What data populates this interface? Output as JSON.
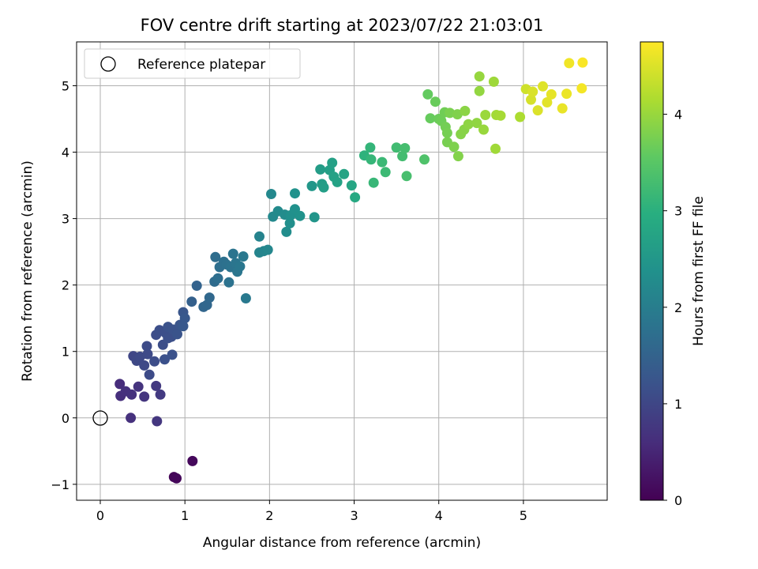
{
  "chart_data": {
    "type": "scatter",
    "title": "FOV centre drift starting at 2023/07/22 21:03:01",
    "xlabel": "Angular distance from reference (arcmin)",
    "ylabel": "Rotation from reference (arcmin)",
    "xlim": [
      -0.28,
      5.99
    ],
    "ylim": [
      -1.24,
      5.66
    ],
    "xticks": [
      0,
      1,
      2,
      3,
      4,
      5
    ],
    "yticks": [
      -1,
      0,
      1,
      2,
      3,
      4,
      5
    ],
    "grid": true,
    "legend": {
      "position": "top-left",
      "entries": [
        "Reference platepar"
      ]
    },
    "reference_point": {
      "x": 0,
      "y": 0,
      "label": "Reference platepar"
    },
    "colorbar": {
      "label": "Hours from first FF file",
      "colormap": "viridis",
      "range": [
        0,
        4.75
      ],
      "ticks": [
        0,
        1,
        2,
        3,
        4
      ]
    },
    "points": [
      [
        0.87,
        -0.89,
        0.05
      ],
      [
        0.9,
        -0.91,
        0.07
      ],
      [
        1.09,
        -0.65,
        0.1
      ],
      [
        0.23,
        0.51,
        0.6
      ],
      [
        0.24,
        0.33,
        0.62
      ],
      [
        0.3,
        0.4,
        0.65
      ],
      [
        0.37,
        0.35,
        0.68
      ],
      [
        0.45,
        0.47,
        0.7
      ],
      [
        0.52,
        0.32,
        0.72
      ],
      [
        0.36,
        0.0,
        0.66
      ],
      [
        0.67,
        -0.05,
        0.75
      ],
      [
        0.66,
        0.48,
        0.78
      ],
      [
        0.71,
        0.35,
        0.8
      ],
      [
        0.39,
        0.93,
        1.0
      ],
      [
        0.43,
        0.86,
        1.02
      ],
      [
        0.47,
        0.92,
        1.04
      ],
      [
        0.52,
        0.79,
        1.05
      ],
      [
        0.56,
        0.96,
        1.06
      ],
      [
        0.55,
        1.08,
        1.07
      ],
      [
        0.58,
        0.65,
        1.08
      ],
      [
        0.64,
        0.85,
        1.1
      ],
      [
        0.66,
        1.25,
        1.11
      ],
      [
        0.7,
        1.32,
        1.12
      ],
      [
        0.74,
        1.1,
        1.13
      ],
      [
        0.77,
        1.28,
        1.14
      ],
      [
        0.8,
        1.2,
        1.15
      ],
      [
        0.84,
        1.22,
        1.16
      ],
      [
        0.76,
        0.88,
        1.17
      ],
      [
        0.85,
        0.95,
        1.18
      ],
      [
        0.8,
        1.37,
        1.19
      ],
      [
        0.86,
        1.33,
        1.2
      ],
      [
        0.91,
        1.26,
        1.22
      ],
      [
        0.94,
        1.4,
        1.24
      ],
      [
        0.98,
        1.59,
        1.27
      ],
      [
        1.0,
        1.5,
        1.29
      ],
      [
        0.98,
        1.38,
        1.3
      ],
      [
        1.08,
        1.75,
        1.45
      ],
      [
        1.14,
        1.99,
        1.5
      ],
      [
        1.22,
        1.67,
        1.55
      ],
      [
        1.26,
        1.7,
        1.58
      ],
      [
        1.29,
        1.81,
        1.6
      ],
      [
        1.35,
        2.05,
        1.65
      ],
      [
        1.36,
        2.42,
        1.68
      ],
      [
        1.39,
        2.1,
        1.7
      ],
      [
        1.41,
        2.27,
        1.72
      ],
      [
        1.46,
        2.35,
        1.74
      ],
      [
        1.49,
        2.31,
        1.76
      ],
      [
        1.52,
        2.04,
        1.78
      ],
      [
        1.54,
        2.27,
        1.8
      ],
      [
        1.57,
        2.47,
        1.82
      ],
      [
        1.6,
        2.33,
        1.84
      ],
      [
        1.62,
        2.2,
        1.86
      ],
      [
        1.65,
        2.28,
        1.88
      ],
      [
        1.69,
        2.43,
        1.9
      ],
      [
        1.72,
        1.8,
        1.92
      ],
      [
        1.88,
        2.73,
        2.1
      ],
      [
        1.88,
        2.49,
        2.12
      ],
      [
        1.93,
        2.51,
        2.15
      ],
      [
        1.98,
        2.53,
        2.18
      ],
      [
        2.02,
        3.37,
        2.2
      ],
      [
        2.04,
        3.03,
        2.22
      ],
      [
        2.1,
        3.11,
        2.25
      ],
      [
        2.18,
        3.06,
        2.28
      ],
      [
        2.2,
        2.8,
        2.3
      ],
      [
        2.24,
        2.93,
        2.33
      ],
      [
        2.25,
        3.05,
        2.35
      ],
      [
        2.3,
        3.14,
        2.37
      ],
      [
        2.3,
        3.38,
        2.39
      ],
      [
        2.36,
        3.04,
        2.4
      ],
      [
        2.53,
        3.02,
        2.45
      ],
      [
        2.5,
        3.49,
        2.5
      ],
      [
        2.6,
        3.74,
        2.6
      ],
      [
        2.62,
        3.52,
        2.62
      ],
      [
        2.64,
        3.47,
        2.64
      ],
      [
        2.71,
        3.73,
        2.66
      ],
      [
        2.74,
        3.84,
        2.68
      ],
      [
        2.76,
        3.63,
        2.7
      ],
      [
        2.8,
        3.55,
        2.72
      ],
      [
        2.88,
        3.67,
        2.75
      ],
      [
        2.97,
        3.5,
        2.78
      ],
      [
        3.01,
        3.32,
        2.85
      ],
      [
        3.12,
        3.95,
        3.05
      ],
      [
        3.19,
        4.07,
        3.1
      ],
      [
        3.2,
        3.89,
        3.12
      ],
      [
        3.23,
        3.54,
        3.15
      ],
      [
        3.33,
        3.85,
        3.18
      ],
      [
        3.37,
        3.7,
        3.2
      ],
      [
        3.5,
        4.07,
        3.25
      ],
      [
        3.57,
        3.94,
        3.28
      ],
      [
        3.6,
        4.06,
        3.3
      ],
      [
        3.62,
        3.64,
        3.32
      ],
      [
        3.83,
        3.89,
        3.4
      ],
      [
        3.87,
        4.87,
        3.6
      ],
      [
        3.9,
        4.51,
        3.62
      ],
      [
        3.96,
        4.76,
        3.64
      ],
      [
        4.0,
        4.5,
        3.66
      ],
      [
        4.03,
        4.47,
        3.68
      ],
      [
        4.07,
        4.6,
        3.7
      ],
      [
        4.08,
        4.38,
        3.72
      ],
      [
        4.1,
        4.29,
        3.74
      ],
      [
        4.1,
        4.15,
        3.76
      ],
      [
        4.13,
        4.59,
        3.78
      ],
      [
        4.18,
        4.08,
        3.8
      ],
      [
        4.22,
        4.57,
        3.82
      ],
      [
        4.23,
        3.94,
        3.84
      ],
      [
        4.26,
        4.27,
        3.86
      ],
      [
        4.3,
        4.34,
        3.88
      ],
      [
        4.31,
        4.62,
        3.9
      ],
      [
        4.35,
        4.42,
        3.92
      ],
      [
        4.45,
        4.44,
        3.94
      ],
      [
        4.48,
        4.92,
        3.96
      ],
      [
        4.48,
        5.14,
        3.98
      ],
      [
        4.53,
        4.34,
        4.0
      ],
      [
        4.55,
        4.56,
        4.02
      ],
      [
        4.65,
        5.06,
        4.04
      ],
      [
        4.67,
        4.05,
        4.06
      ],
      [
        4.68,
        4.56,
        4.08
      ],
      [
        4.73,
        4.55,
        4.1
      ],
      [
        4.96,
        4.53,
        4.15
      ],
      [
        5.03,
        4.95,
        4.4
      ],
      [
        5.09,
        4.79,
        4.45
      ],
      [
        5.11,
        4.91,
        4.48
      ],
      [
        5.17,
        4.63,
        4.5
      ],
      [
        5.23,
        4.99,
        4.52
      ],
      [
        5.28,
        4.75,
        4.55
      ],
      [
        5.33,
        4.87,
        4.58
      ],
      [
        5.46,
        4.66,
        4.6
      ],
      [
        5.51,
        4.88,
        4.62
      ],
      [
        5.54,
        5.34,
        4.65
      ],
      [
        5.69,
        4.96,
        4.68
      ],
      [
        5.7,
        5.35,
        4.72
      ]
    ]
  }
}
